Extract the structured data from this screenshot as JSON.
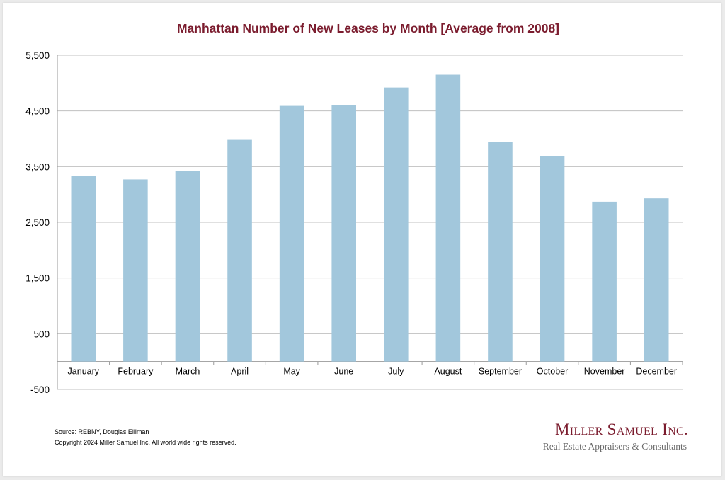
{
  "colors": {
    "title": "#7b1c2e",
    "bar": "#a2c7dc",
    "grid": "#c0c0c0",
    "logo": "#7b1c2e"
  },
  "chart_data": {
    "type": "bar",
    "title": "Manhattan Number of New Leases by Month [Average from 2008]",
    "xlabel": "",
    "ylabel": "",
    "categories": [
      "January",
      "February",
      "March",
      "April",
      "May",
      "June",
      "July",
      "August",
      "September",
      "October",
      "November",
      "December"
    ],
    "values": [
      3330,
      3270,
      3420,
      3980,
      4590,
      4600,
      4920,
      5150,
      3940,
      3690,
      2870,
      2930
    ],
    "yticks": [
      -500,
      500,
      1500,
      2500,
      3500,
      4500,
      5500
    ],
    "ytick_labels": [
      "-500",
      "500",
      "1,500",
      "2,500",
      "3,500",
      "4,500",
      "5,500"
    ],
    "ylim": [
      -500,
      5500
    ],
    "grid": true,
    "legend": "none"
  },
  "footer": {
    "source": "Source: REBNY, Douglas Elliman",
    "copyright": "Copyright 2024 Miller Samuel Inc.  All world wide rights reserved."
  },
  "logo": {
    "name": "Miller Samuel Inc.",
    "tagline": "Real Estate Appraisers & Consultants"
  }
}
